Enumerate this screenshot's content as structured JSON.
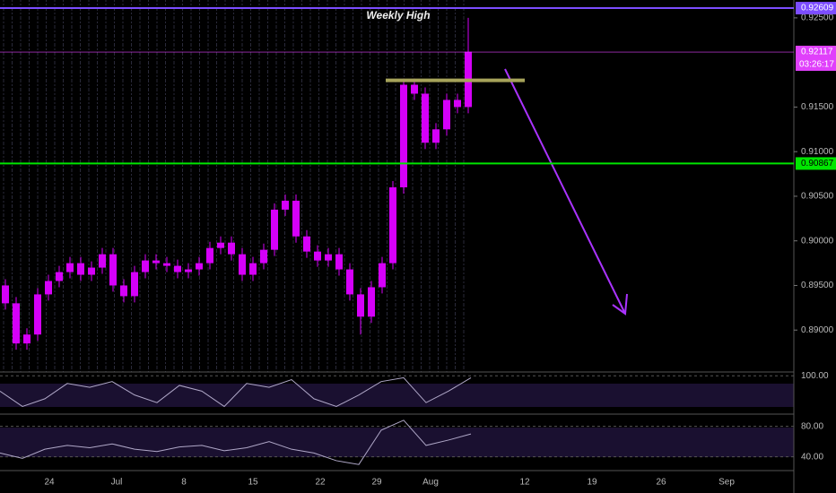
{
  "chart_data": {
    "type": "candlestick",
    "annotation": "Weekly High",
    "open": [
      0.895,
      0.893,
      0.8885,
      0.8895,
      0.894,
      0.8955,
      0.8965,
      0.8975,
      0.8962,
      0.897,
      0.8985,
      0.895,
      0.8938,
      0.8965,
      0.8978,
      0.8975,
      0.8972,
      0.8965,
      0.8968,
      0.8975,
      0.8992,
      0.8998,
      0.8985,
      0.8962,
      0.8975,
      0.899,
      0.9035,
      0.9045,
      0.9005,
      0.8988,
      0.8978,
      0.8985,
      0.8968,
      0.894,
      0.8915,
      0.8948,
      0.8975,
      0.906,
      0.9175,
      0.9165,
      0.911,
      0.9125,
      0.9158,
      0.915
    ],
    "high": [
      0.8957,
      0.8937,
      0.8902,
      0.8947,
      0.8962,
      0.8972,
      0.8982,
      0.8982,
      0.8977,
      0.8992,
      0.8992,
      0.8957,
      0.8972,
      0.8985,
      0.8985,
      0.8982,
      0.8979,
      0.8975,
      0.8982,
      0.8999,
      0.9005,
      0.9005,
      0.8992,
      0.8982,
      0.8997,
      0.9042,
      0.9052,
      0.9052,
      0.9012,
      0.8995,
      0.8992,
      0.8992,
      0.8975,
      0.8947,
      0.8955,
      0.8982,
      0.9067,
      0.9182,
      0.9182,
      0.9172,
      0.9132,
      0.9165,
      0.9165,
      0.925
    ],
    "low": [
      0.8923,
      0.8878,
      0.8878,
      0.8888,
      0.8933,
      0.8948,
      0.8958,
      0.8955,
      0.8955,
      0.8963,
      0.8943,
      0.8931,
      0.8931,
      0.8958,
      0.8968,
      0.8965,
      0.8958,
      0.8958,
      0.8961,
      0.8968,
      0.8985,
      0.8978,
      0.8955,
      0.8955,
      0.8968,
      0.8983,
      0.9028,
      0.8998,
      0.8981,
      0.8971,
      0.8971,
      0.8961,
      0.8933,
      0.8895,
      0.8908,
      0.8941,
      0.8968,
      0.9053,
      0.9158,
      0.9103,
      0.9103,
      0.9118,
      0.9143,
      0.9143
    ],
    "close": [
      0.893,
      0.8885,
      0.8895,
      0.894,
      0.8955,
      0.8965,
      0.8975,
      0.8962,
      0.897,
      0.8985,
      0.895,
      0.8938,
      0.8965,
      0.8978,
      0.8975,
      0.8972,
      0.8965,
      0.8968,
      0.8975,
      0.8992,
      0.8998,
      0.8985,
      0.8962,
      0.8975,
      0.899,
      0.9035,
      0.9045,
      0.9005,
      0.8988,
      0.8978,
      0.8985,
      0.8968,
      0.894,
      0.8915,
      0.8948,
      0.8975,
      0.906,
      0.9175,
      0.9165,
      0.911,
      0.9125,
      0.9158,
      0.915,
      0.9212
    ],
    "color": "#d500f9",
    "ylim": [
      0.8853,
      0.927
    ],
    "yticks": [
      {
        "value": 0.925,
        "label": "0.92500"
      },
      {
        "value": 0.915,
        "label": "0.91500"
      },
      {
        "value": 0.91,
        "label": "0.91000"
      },
      {
        "value": 0.905,
        "label": "0.90500"
      },
      {
        "value": 0.9,
        "label": "0.90000"
      },
      {
        "value": 0.895,
        "label": "0.89500"
      },
      {
        "value": 0.89,
        "label": "0.89000"
      }
    ],
    "price_lines": [
      {
        "value": 0.92609,
        "label": "0.92609",
        "color": "#7c4dff"
      },
      {
        "value": 0.92117,
        "label": "0.92117",
        "color": "#e040fb",
        "countdown": "03:26:17"
      },
      {
        "value": 0.90867,
        "label": "0.90867",
        "color": "#00e600"
      }
    ],
    "zone": {
      "value": 0.918,
      "color": "#a6a35a"
    },
    "xtick_labels": [
      "24",
      "Jul",
      "8",
      "15",
      "22",
      "29",
      "Aug",
      "12",
      "19",
      "26",
      "Sep"
    ],
    "indicators": [
      {
        "ylim": [
          0,
          110
        ],
        "yticks": [
          {
            "value": 100,
            "label": "100.00"
          }
        ],
        "color": "#b0a8c8",
        "values": [
          60,
          20,
          40,
          80,
          70,
          85,
          50,
          30,
          75,
          60,
          20,
          80,
          70,
          90,
          40,
          20,
          50,
          85,
          95,
          30,
          60,
          95
        ]
      },
      {
        "ylim": [
          22,
          96
        ],
        "yticks": [
          {
            "value": 80,
            "label": "80.00"
          },
          {
            "value": 40,
            "label": "40.00"
          }
        ],
        "color": "#b0a8c8",
        "values": [
          45,
          38,
          50,
          55,
          52,
          57,
          50,
          47,
          53,
          55,
          48,
          52,
          60,
          50,
          45,
          35,
          30,
          75,
          88,
          55,
          62,
          70
        ]
      }
    ]
  }
}
